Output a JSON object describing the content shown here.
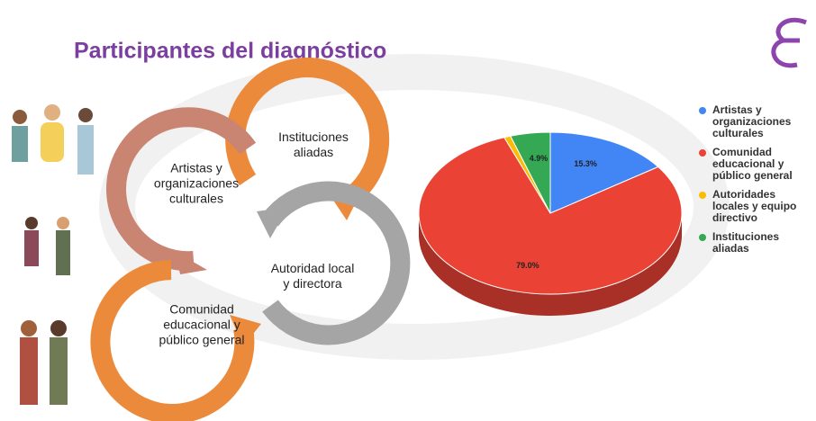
{
  "header": {
    "title": "Participantes del diagnóstico"
  },
  "diagram": {
    "nodes": [
      {
        "lines": [
          "Instituciones",
          "aliadas"
        ]
      },
      {
        "lines": [
          "Artistas y",
          "organizaciones",
          "culturales"
        ]
      },
      {
        "lines": [
          "Autoridad local",
          "y directora"
        ]
      },
      {
        "lines": [
          "Comunidad",
          "educacional y",
          "público general"
        ]
      }
    ]
  },
  "chart_data": {
    "type": "pie",
    "categories": [
      "Artistas y organizaciones culturales",
      "Comunidad educacional y público general",
      "Autoridades locales y equipo directivo",
      "Instituciones aliadas"
    ],
    "values": [
      15.3,
      79.0,
      0.8,
      4.9
    ],
    "value_labels": [
      "15.3%",
      "79.0%",
      null,
      "4.9%"
    ],
    "colors": [
      "#4285f4",
      "#ea4335",
      "#fbbc04",
      "#34a853"
    ],
    "legend": "right"
  }
}
